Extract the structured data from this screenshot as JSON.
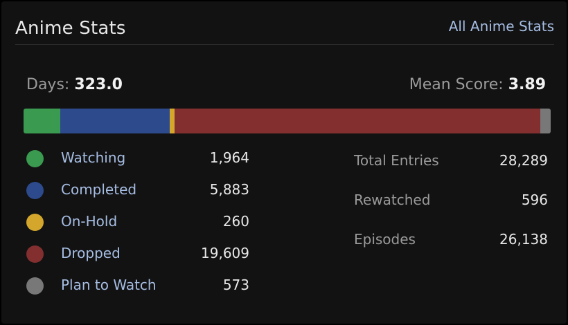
{
  "header": {
    "title": "Anime Stats",
    "all_stats_link": "All Anime Stats"
  },
  "summary": {
    "days_label": "Days:",
    "days_value": "323.0",
    "mean_score_label": "Mean Score:",
    "mean_score_value": "3.89"
  },
  "status_bar": {
    "segments": [
      {
        "name": "Watching",
        "count": 1964,
        "color": "#3a9a4f"
      },
      {
        "name": "Completed",
        "count": 5883,
        "color": "#2c4a8c"
      },
      {
        "name": "On-Hold",
        "count": 260,
        "color": "#d4a72c"
      },
      {
        "name": "Dropped",
        "count": 19609,
        "color": "#832f30"
      },
      {
        "name": "Plan to Watch",
        "count": 573,
        "color": "#787878"
      }
    ]
  },
  "legend": [
    {
      "label": "Watching",
      "value": "1,964",
      "color": "#3a9a4f",
      "icon": "watching-dot-icon"
    },
    {
      "label": "Completed",
      "value": "5,883",
      "color": "#2c4a8c",
      "icon": "completed-dot-icon"
    },
    {
      "label": "On-Hold",
      "value": "260",
      "color": "#d4a72c",
      "icon": "on-hold-dot-icon"
    },
    {
      "label": "Dropped",
      "value": "19,609",
      "color": "#832f30",
      "icon": "dropped-dot-icon"
    },
    {
      "label": "Plan to Watch",
      "value": "573",
      "color": "#787878",
      "icon": "plan-to-watch-dot-icon"
    }
  ],
  "totals": [
    {
      "label": "Total Entries",
      "value": "28,289"
    },
    {
      "label": "Rewatched",
      "value": "596"
    },
    {
      "label": "Episodes",
      "value": "26,138"
    }
  ]
}
